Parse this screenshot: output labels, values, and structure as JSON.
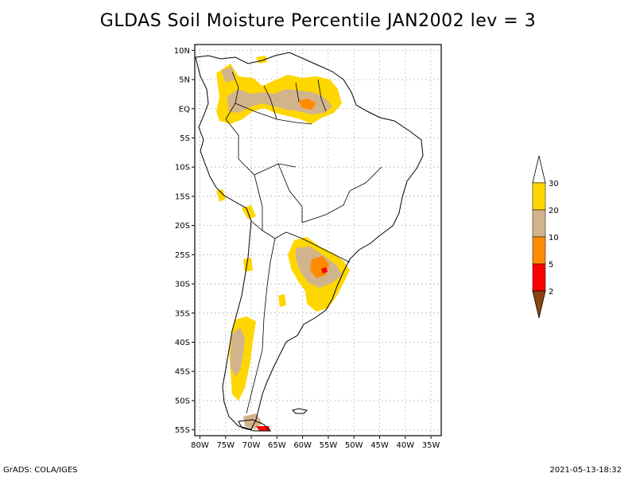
{
  "title": "GLDAS Soil Moisture Percentile JAN2002 lev = 3",
  "footer_left": "GrADS: COLA/IGES",
  "footer_right": "2021-05-13-18:32",
  "lat_ticks": [
    "10N",
    "5N",
    "EQ",
    "5S",
    "10S",
    "15S",
    "20S",
    "25S",
    "30S",
    "35S",
    "40S",
    "45S",
    "50S",
    "55S"
  ],
  "lon_ticks": [
    "80W",
    "75W",
    "70W",
    "65W",
    "60W",
    "55W",
    "50W",
    "45W",
    "40W",
    "35W"
  ],
  "legend": {
    "labels": [
      "30",
      "20",
      "10",
      "5",
      "2"
    ],
    "colors": [
      "#ffffff",
      "#ffd700",
      "#d2b48c",
      "#ff8c00",
      "#ff0000",
      "#8b4513"
    ]
  },
  "map_extent": {
    "lon": [
      -81,
      -33
    ],
    "lat": [
      -56,
      11
    ]
  }
}
